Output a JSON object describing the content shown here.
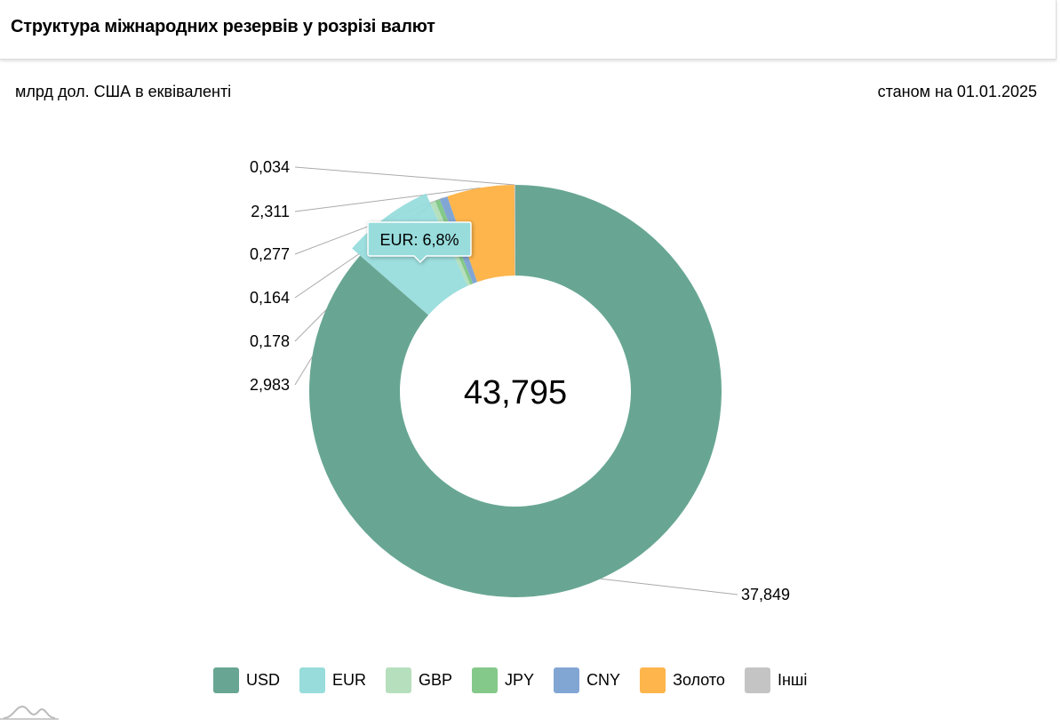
{
  "header": {
    "title": "Структура міжнародних резервів у розрізі валют"
  },
  "subtitle": {
    "unit": "млрд дол. США в еквіваленті",
    "as_of": "станом на 01.01.2025"
  },
  "chart_data": {
    "type": "pie",
    "variant": "donut",
    "title": "Структура міжнародних резервів у розрізі валют",
    "total_label": "43,795",
    "total": 43.795,
    "slices": [
      {
        "name": "USD",
        "value": 37.849,
        "label": "37,849",
        "color": "#68a693"
      },
      {
        "name": "EUR",
        "value": 2.983,
        "label": "2,983",
        "color": "#98dcdc"
      },
      {
        "name": "GBP",
        "value": 0.178,
        "label": "0,178",
        "color": "#b6e0bd"
      },
      {
        "name": "JPY",
        "value": 0.164,
        "label": "0,164",
        "color": "#84c98a"
      },
      {
        "name": "CNY",
        "value": 0.277,
        "label": "0,277",
        "color": "#82a6d4"
      },
      {
        "name": "Золото",
        "value": 2.311,
        "label": "2,311",
        "color": "#fdb54c"
      },
      {
        "name": "Інші",
        "value": 0.034,
        "label": "0,034",
        "color": "#c4c4c4"
      }
    ],
    "tooltip": {
      "text": "EUR: 6,8%",
      "slice": "EUR"
    },
    "legend_position": "bottom"
  }
}
